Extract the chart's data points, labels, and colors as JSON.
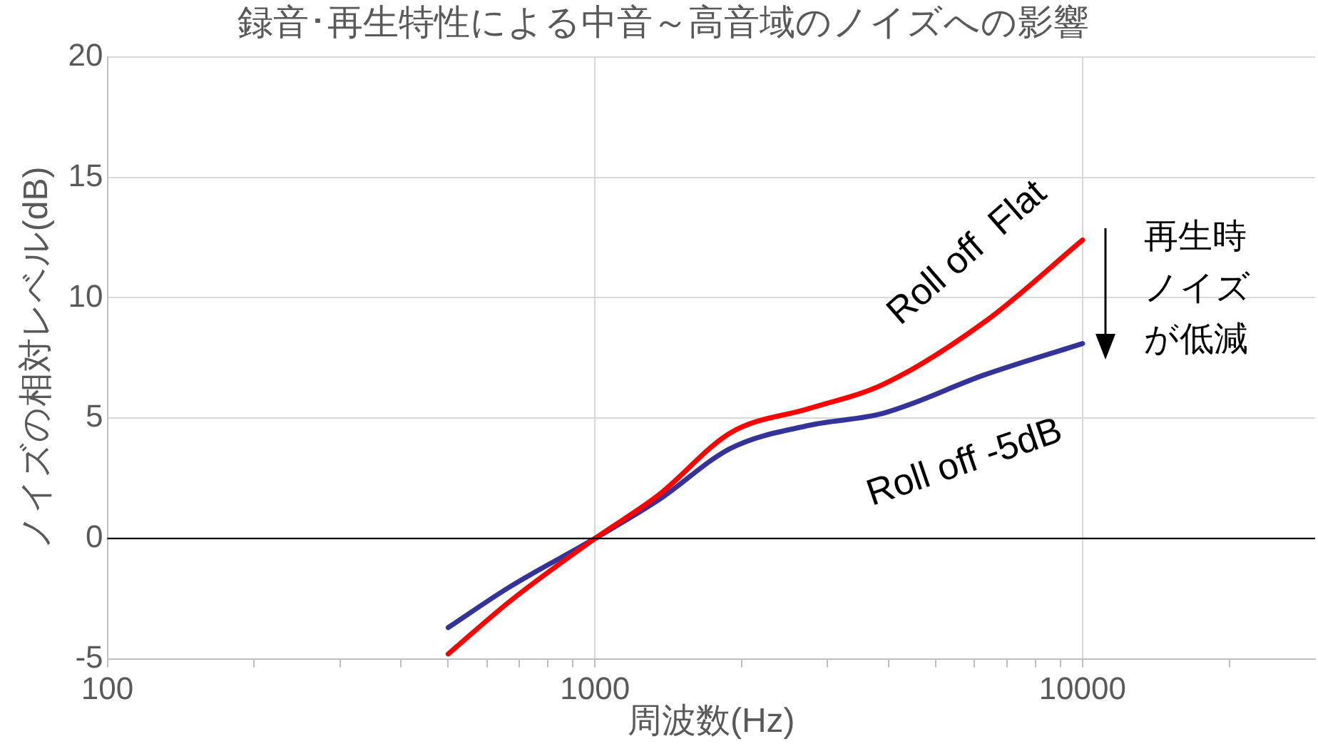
{
  "chart_data": {
    "type": "line",
    "title": "録音･再生特性による中音～高音域のノイズへの影響",
    "xlabel": "周波数(Hz)",
    "ylabel": "ノイズの相対レベル(dB)",
    "log": "x",
    "xlim": [
      100,
      30000
    ],
    "xticks": [
      100,
      {
        "value": 200,
        "label": null
      },
      {
        "value": 300,
        "label": null
      },
      {
        "value": 400,
        "label": null
      },
      {
        "value": 500,
        "label": null
      },
      {
        "value": 600,
        "label": null
      },
      {
        "value": 700,
        "label": null
      },
      {
        "value": 800,
        "label": null
      },
      {
        "value": 900,
        "label": null
      },
      1000,
      {
        "value": 2000,
        "label": null
      },
      {
        "value": 3000,
        "label": null
      },
      {
        "value": 4000,
        "label": null
      },
      {
        "value": 5000,
        "label": null
      },
      {
        "value": 6000,
        "label": null
      },
      {
        "value": 7000,
        "label": null
      },
      {
        "value": 8000,
        "label": null
      },
      {
        "value": 9000,
        "label": null
      },
      10000,
      {
        "value": 20000,
        "label": null
      }
    ],
    "ylim": [
      -5,
      20
    ],
    "yticks": [
      -5,
      0,
      5,
      10,
      15,
      20
    ],
    "grid": true,
    "legend": false,
    "marker": "none",
    "line_style": "solid",
    "x": [
      500,
      670,
      1000,
      1350,
      1900,
      2750,
      3900,
      6300,
      10000
    ],
    "series": [
      {
        "name": "Roll off  Flat",
        "color": "#ff0000",
        "values": [
          -4.8,
          -2.6,
          0,
          1.8,
          4.4,
          5.4,
          6.4,
          9.0,
          12.4
        ]
      },
      {
        "name": "Roll off -5dB",
        "color": "#333399",
        "values": [
          -3.7,
          -2.0,
          0,
          1.6,
          3.75,
          4.7,
          5.2,
          6.8,
          8.1
        ]
      }
    ],
    "ref_lines": [
      {
        "axis": "y",
        "value": 0,
        "color": "#000000"
      }
    ],
    "annotations": [
      "再生時ノイズが低減"
    ]
  }
}
